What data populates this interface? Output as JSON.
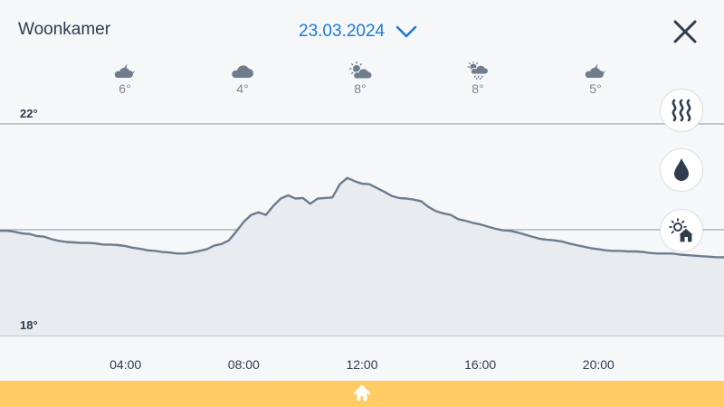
{
  "header": {
    "room": "Woonkamer",
    "date": "23.03.2024",
    "date_dropdown_icon": "chevron-down-icon",
    "close_icon": "close-icon"
  },
  "weather": [
    {
      "icon": "cloud-moon-icon",
      "temp": "6°"
    },
    {
      "icon": "cloud-icon",
      "temp": "4°"
    },
    {
      "icon": "sun-cloud-icon",
      "temp": "8°"
    },
    {
      "icon": "sun-cloud-rain-icon",
      "temp": "8°"
    },
    {
      "icon": "cloud-moon-icon",
      "temp": "5°"
    }
  ],
  "side_buttons": [
    {
      "icon": "heating-icon"
    },
    {
      "icon": "humidity-drop-icon"
    },
    {
      "icon": "sun-house-icon"
    }
  ],
  "footer": {
    "home_icon": "home-icon"
  },
  "colors": {
    "accent": "#1d7ad6",
    "footer": "#fecb65",
    "line": "#6e7c8c",
    "text": "#2f3c4c"
  },
  "chart_data": {
    "type": "area",
    "y_tick_labels": [
      "22°",
      "18°"
    ],
    "ylim": [
      18,
      22
    ],
    "y_gridlines": [
      22,
      20,
      18
    ],
    "x_tick_labels": [
      "04:00",
      "08:00",
      "12:00",
      "16:00",
      "20:00"
    ],
    "x_ticks": [
      4,
      8,
      12,
      16,
      20
    ],
    "xlim": [
      0,
      24
    ],
    "series": [
      {
        "x": [
          0,
          0.25,
          0.5,
          0.75,
          1,
          1.25,
          1.5,
          1.75,
          2,
          2.25,
          2.5,
          2.75,
          3,
          3.25,
          3.5,
          3.75,
          4,
          4.25,
          4.5,
          4.75,
          5,
          5.25,
          5.5,
          5.75,
          6,
          6.25,
          6.5,
          6.75,
          7,
          7.25,
          7.5,
          7.75,
          8,
          8.25,
          8.5,
          8.75,
          9,
          9.25,
          9.5,
          9.75,
          10,
          10.25,
          10.5,
          10.75,
          11,
          11.25,
          11.5,
          11.75,
          12,
          12.25,
          12.5,
          12.75,
          13,
          13.25,
          13.5,
          13.75,
          14,
          14.25,
          14.5,
          14.75,
          15,
          15.25,
          15.5,
          15.75,
          16,
          16.25,
          16.5,
          16.75,
          17,
          17.25,
          17.5,
          17.75,
          18,
          18.25,
          18.5,
          18.75,
          19,
          19.25,
          19.5,
          19.75,
          20,
          20.25,
          20.5,
          20.75,
          21,
          21.25,
          21.5,
          21.75,
          22,
          22.25,
          22.5,
          22.75,
          23,
          23.25,
          23.5,
          23.75,
          24
        ],
        "y": [
          19.98,
          19.96,
          19.93,
          19.92,
          19.88,
          19.87,
          19.82,
          19.79,
          19.77,
          19.76,
          19.75,
          19.75,
          19.74,
          19.72,
          19.72,
          19.71,
          19.69,
          19.66,
          19.64,
          19.61,
          19.6,
          19.58,
          19.57,
          19.55,
          19.55,
          19.57,
          19.6,
          19.63,
          19.7,
          19.73,
          19.8,
          19.97,
          20.15,
          20.28,
          20.33,
          20.28,
          20.45,
          20.59,
          20.65,
          20.59,
          20.6,
          20.49,
          20.59,
          20.6,
          20.61,
          20.86,
          20.98,
          20.92,
          20.87,
          20.86,
          20.79,
          20.72,
          20.64,
          20.6,
          20.59,
          20.57,
          20.54,
          20.43,
          20.35,
          20.31,
          20.28,
          20.2,
          20.17,
          20.13,
          20.1,
          20.06,
          20.02,
          19.99,
          19.98,
          19.95,
          19.91,
          19.87,
          19.83,
          19.81,
          19.8,
          19.78,
          19.74,
          19.71,
          19.68,
          19.65,
          19.63,
          19.61,
          19.6,
          19.6,
          19.59,
          19.59,
          19.58,
          19.56,
          19.55,
          19.55,
          19.55,
          19.53,
          19.52,
          19.51,
          19.5,
          19.49,
          19.48
        ]
      }
    ]
  }
}
